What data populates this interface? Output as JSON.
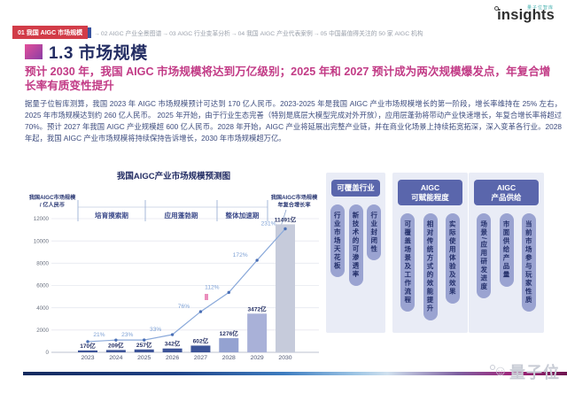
{
  "brand": {
    "logo_text": "insights",
    "logo_superscript": "量子位智库"
  },
  "nav": {
    "active": "01 我国 AIGC 市场规模",
    "separator": "→",
    "items": [
      "02 AIGC 产业全景图谱",
      "03 AIGC 行业变革分析",
      "04 我国 AIGC 产业代表案例",
      "05 中国最值得关注的 50 家 AIGC 机构"
    ]
  },
  "title": "1.3 市场规模",
  "headline": "预计 2030 年，我国 AIGC 市场规模将达到万亿级别；2025 年和 2027 预计成为两次规模爆发点，年复合增长率有质变性提升",
  "body": "据量子位智库测算，我国 2023 年 AIGC 市场规模预计可达到 170 亿人民币。2023-2025 年是我国 AIGC 产业市场规模增长的第一阶段，增长率维持在 25% 左右，2025 年市场规模达到约 260 亿人民币。 2025 年开始，由于行业生态完善（特别是底层大模型完成对外开放），应用层蓬勃将带动产业快速增长，年复合增长率将超过 70%。预计 2027 年我国 AIGC 产业规模超 600 亿人民币。2028 年开始，AIGC 产业将延展出完整产业链，并在商业化场景上持续拓宽拓深，深入变革各行业。2028 年起，我国 AIGC 产业市场规模将持续保持告诉增长，2030 年市场规模超万亿。",
  "chart_data": {
    "type": "bar+line",
    "title": "我国AIGC产业市场规模预测图",
    "left_axis_label": "我国AIGC市场规模\n/ 亿人民币",
    "right_axis_label": "我国AIGC市场规模\n年复合增长率",
    "phases": [
      "培育摸索期",
      "应用蓬勃期",
      "整体加速期"
    ],
    "categories": [
      2023,
      2024,
      2025,
      2026,
      2027,
      2028,
      2029,
      2030
    ],
    "bar_values": [
      170,
      209,
      257,
      342,
      602,
      1276,
      3472,
      11491
    ],
    "bar_labels": [
      "170亿",
      "209亿",
      "257亿",
      "342亿",
      "602亿",
      "1276亿",
      "3472亿",
      "11491亿"
    ],
    "growth_labels": [
      "21%",
      "23%",
      "33%",
      "76%",
      "112%",
      "172%",
      "231%"
    ],
    "ylim": [
      0,
      12000
    ],
    "yticks": [
      0,
      2000,
      4000,
      6000,
      8000,
      10000,
      12000
    ],
    "grid": true,
    "legend_position": "none",
    "bar_colors": [
      "#3d5498",
      "#3d5498",
      "#3d5498",
      "#3d5498",
      "#3d5498",
      "#94a2d1",
      "#a9b1d8",
      "#c6cbdb"
    ],
    "line_color": "#8aa9da"
  },
  "panel": {
    "columns": [
      {
        "header": "可覆盖行业",
        "pills": [
          "行业市场天花板",
          "新技术的可渗透率",
          "行业封闭性"
        ]
      },
      {
        "header": "AIGC\n可赋能程度",
        "pills": [
          "可覆盖场景及工作流程",
          "相对传统方式的效能提升",
          "实际使用体验及效果"
        ]
      },
      {
        "header": "AIGC\n产品供给",
        "pills": [
          "场景/应用研发进度",
          "市面供给产品量",
          "当前市场参与玩家性质"
        ]
      }
    ]
  },
  "footer": {
    "logo": "量子位"
  },
  "colors": {
    "badge_red": "#d23c48",
    "badge_blue": "#3a539e",
    "title_navy": "#232d63",
    "headline_pink": "#c23b86",
    "body_text": "#3d4c7e",
    "panel_bg": "#e9ecf6",
    "panel_header_bg": "#5a66ac",
    "pill_bg": "#9aa3d1"
  }
}
